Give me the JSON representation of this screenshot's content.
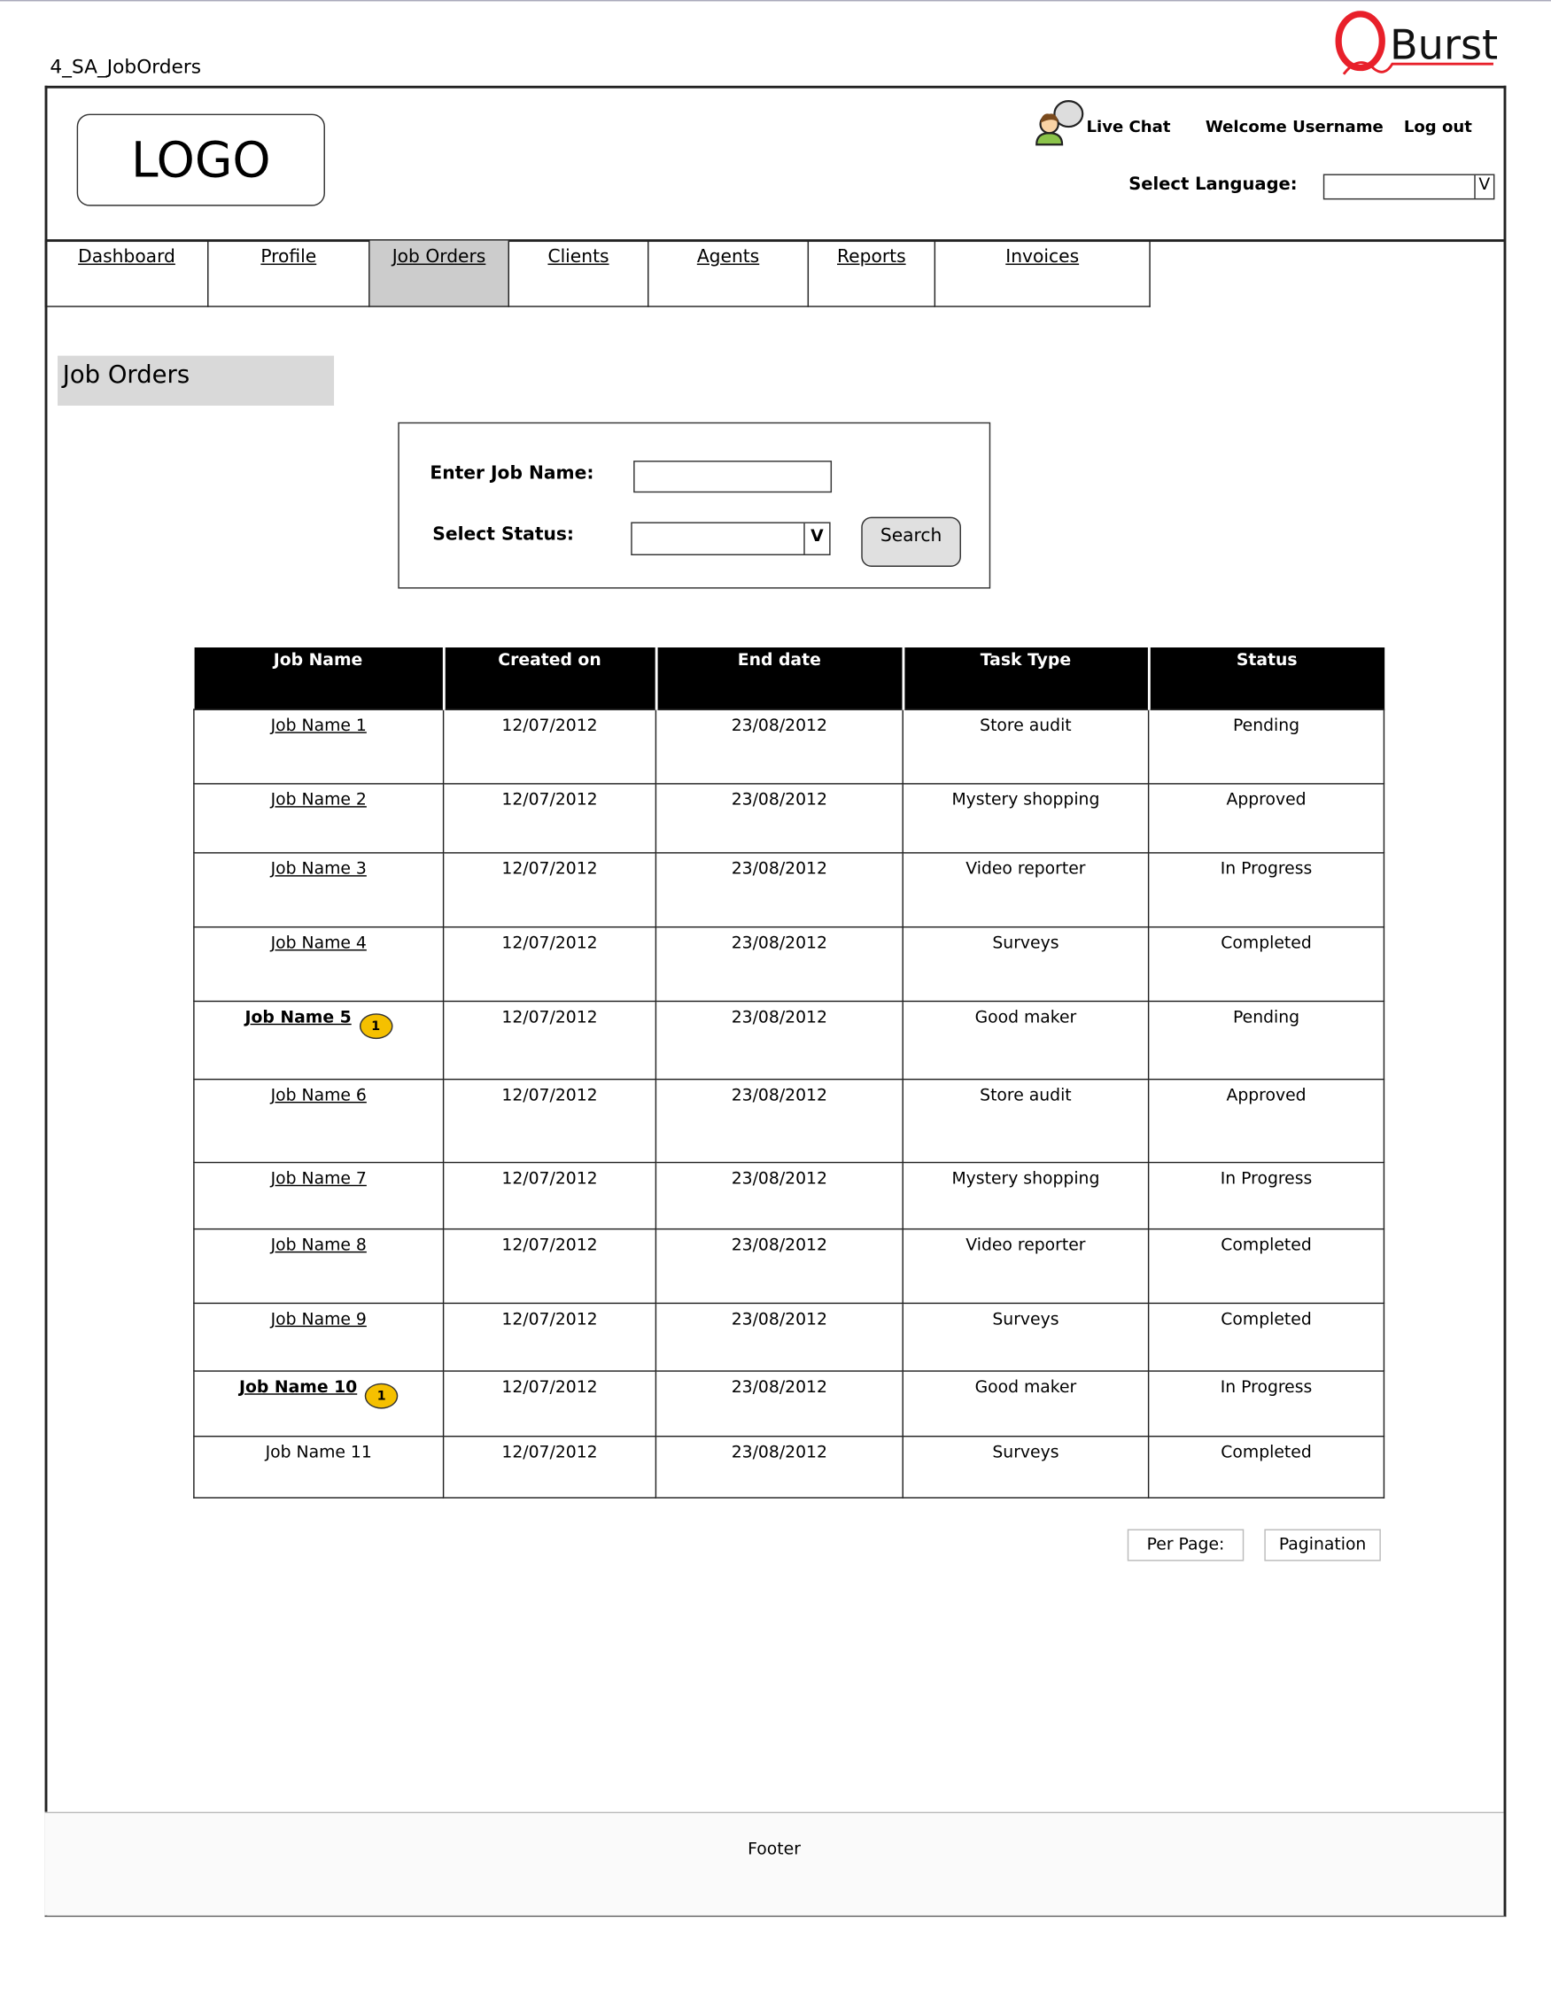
{
  "page_title": "4_SA_JobOrders",
  "brand_logo": "QBurst",
  "header": {
    "logo_text": "LOGO",
    "live_chat": "Live Chat",
    "welcome": "Welcome Username",
    "logout": "Log out",
    "language_label": "Select Language:",
    "language_value": "",
    "dropdown_arrow": "V"
  },
  "nav": [
    "Dashboard",
    "Profile",
    "Job Orders",
    "Clients",
    "Agents",
    "Reports",
    "Invoices"
  ],
  "active_nav": "Job Orders",
  "section_title": "Job Orders",
  "search": {
    "job_name_label": "Enter Job Name:",
    "job_name_value": "",
    "status_label": "Select Status:",
    "status_value": "",
    "dropdown_arrow": "V",
    "button": "Search"
  },
  "table": {
    "columns": [
      "Job Name",
      "Created on",
      "End date",
      "Task Type",
      "Status"
    ],
    "rows": [
      {
        "job": "Job Name 1",
        "created": "12/07/2012",
        "end": "23/08/2012",
        "task": "Store audit",
        "status": "Pending",
        "link": true,
        "bold": false,
        "badge": ""
      },
      {
        "job": "Job Name 2",
        "created": "12/07/2012",
        "end": "23/08/2012",
        "task": "Mystery shopping",
        "status": "Approved",
        "link": true,
        "bold": false,
        "badge": ""
      },
      {
        "job": "Job Name 3",
        "created": "12/07/2012",
        "end": "23/08/2012",
        "task": "Video reporter",
        "status": "In Progress",
        "link": true,
        "bold": false,
        "badge": ""
      },
      {
        "job": "Job Name 4",
        "created": "12/07/2012",
        "end": "23/08/2012",
        "task": "Surveys",
        "status": "Completed",
        "link": true,
        "bold": false,
        "badge": ""
      },
      {
        "job": "Job Name 5",
        "created": "12/07/2012",
        "end": "23/08/2012",
        "task": "Good maker",
        "status": "Pending",
        "link": true,
        "bold": true,
        "badge": "1"
      },
      {
        "job": "Job Name 6",
        "created": "12/07/2012",
        "end": "23/08/2012",
        "task": "Store audit",
        "status": "Approved",
        "link": true,
        "bold": false,
        "badge": ""
      },
      {
        "job": "Job Name 7",
        "created": "12/07/2012",
        "end": "23/08/2012",
        "task": "Mystery shopping",
        "status": "In Progress",
        "link": true,
        "bold": false,
        "badge": ""
      },
      {
        "job": "Job Name 8",
        "created": "12/07/2012",
        "end": "23/08/2012",
        "task": "Video reporter",
        "status": "Completed",
        "link": true,
        "bold": false,
        "badge": ""
      },
      {
        "job": "Job Name 9",
        "created": "12/07/2012",
        "end": "23/08/2012",
        "task": "Surveys",
        "status": "Completed",
        "link": true,
        "bold": false,
        "badge": ""
      },
      {
        "job": "Job Name 10",
        "created": "12/07/2012",
        "end": "23/08/2012",
        "task": "Good maker",
        "status": "In Progress",
        "link": true,
        "bold": true,
        "badge": "1"
      },
      {
        "job": "Job Name 11",
        "created": "12/07/2012",
        "end": "23/08/2012",
        "task": "Surveys",
        "status": "Completed",
        "link": false,
        "bold": false,
        "badge": ""
      }
    ]
  },
  "pagination": {
    "per_page": "Per Page:",
    "pagination": "Pagination"
  },
  "footer": "Footer",
  "colors": {
    "header_bg": "#000000",
    "active_tab": "#cccccc",
    "badge": "#f5c000",
    "brand_red": "#e8202a"
  }
}
